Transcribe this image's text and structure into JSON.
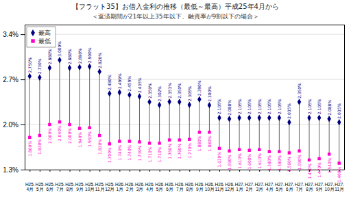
{
  "chart_data": {
    "type": "range",
    "title": "【フラット35】お借入金利の推移（最低～最高）平成25年4月から",
    "subtitle": "＜返済期間が21年以上35年以下、融資率が9割以下の場合＞",
    "categories": [
      "H25.\n4月",
      "H25.\n5月",
      "H25.\n6月",
      "H25.\n7月",
      "H25.\n8月",
      "H25.\n9月",
      "H25.\n10月",
      "H25.\n11月",
      "H25.\n12月",
      "H26.\n1月",
      "H26.\n2月",
      "H26.\n3月",
      "H26.\n4月",
      "H26.\n5月",
      "H26.\n6月",
      "H26.\n7月",
      "H26.\n8月",
      "H26.\n9月",
      "H26.\n10月",
      "H26.\n11月",
      "H26.\n12月",
      "H27.\n1月",
      "H27.\n2月",
      "H27.\n3月",
      "H27.\n4月",
      "H27.\n5月",
      "H27.\n6月",
      "H27.\n7月",
      "H27.\n8月",
      "H27.\n9月",
      "H27.\n10月",
      "H27.\n11月"
    ],
    "series": [
      {
        "name": "最高",
        "color": "#000080",
        "marker": "diamond",
        "values": [
          2.75,
          2.73,
          2.88,
          3.0,
          2.88,
          2.89,
          2.9,
          2.82,
          2.48,
          2.499,
          2.459,
          2.435,
          2.35,
          2.302,
          2.353,
          2.35,
          2.305,
          2.39,
          2.3,
          2.105,
          2.088,
          2.105,
          2.105,
          2.105,
          2.105,
          2.105,
          2.035,
          2.35,
          2.105,
          2.105,
          2.088,
          2.035
        ],
        "value_labels": [
          "2.750%",
          "2.730%",
          "2.880%",
          "3.000%",
          "2.880%",
          "2.890%",
          "2.900%",
          "2.820%",
          "2.480%",
          "2.499%",
          "2.459%",
          "2.435%",
          "2.350%",
          "2.302%",
          "2.353%",
          "2.350%",
          "2.305%",
          "2.390%",
          "2.300%",
          "2.105%",
          "2.088%",
          "2.105%",
          "2.105%",
          "2.105%",
          "2.105%",
          "2.105%",
          "2.035%",
          "2.350%",
          "2.105%",
          "2.105%",
          "2.088%",
          "2.035%"
        ]
      },
      {
        "name": "最低",
        "color": "#ff00cc",
        "marker": "square",
        "values": [
          1.8,
          1.83,
          2.0,
          2.04,
          2.0,
          1.94,
          1.95,
          1.83,
          1.7,
          1.74,
          1.74,
          1.73,
          1.71,
          1.71,
          1.76,
          1.76,
          1.77,
          1.88,
          1.88,
          1.63,
          1.59,
          1.61,
          1.6,
          1.61,
          1.58,
          1.58,
          1.56,
          1.59,
          1.45,
          1.47,
          1.54,
          1.4
        ],
        "value_labels": [
          "1.800%",
          "1.830%",
          "2.000%",
          "2.040%",
          "2.000%",
          "1.940%",
          "1.950%",
          "1.830%",
          "1.700%",
          "1.740%",
          "1.740%",
          "1.730%",
          "1.710%",
          "1.710%",
          "1.760%",
          "1.760%",
          "1.770%",
          "1.880%",
          "1.880%",
          "1.630%",
          "1.590%",
          "1.610%",
          "1.600%",
          "1.610%",
          "1.580%",
          "1.580%",
          "1.560%",
          "1.590%",
          "1.450%",
          "1.470%",
          "1.540%",
          "1.400%"
        ]
      }
    ],
    "ylim": [
      1.3,
      3.55
    ],
    "yticks": [
      {
        "value": 1.3,
        "label": "1.3%"
      },
      {
        "value": 2.0,
        "label": "2.0%"
      },
      {
        "value": 2.7,
        "label": "2.7%"
      },
      {
        "value": 3.4,
        "label": "3.4%"
      }
    ],
    "grid": true,
    "legend": "upper left",
    "data_labels": true
  }
}
